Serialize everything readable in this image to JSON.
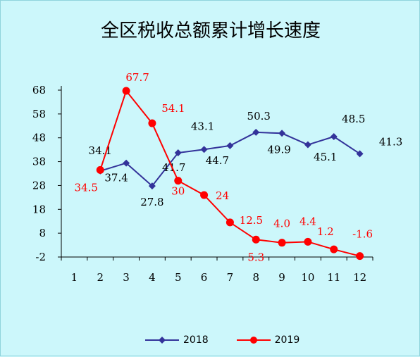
{
  "chart_data": {
    "type": "line",
    "title": "全区税收总额累计增长速度",
    "categories": [
      "1",
      "2",
      "3",
      "4",
      "5",
      "6",
      "7",
      "8",
      "9",
      "10",
      "11",
      "12"
    ],
    "ylim": [
      -2,
      68
    ],
    "yticks": [
      "68",
      "58",
      "48",
      "38",
      "28",
      "18",
      "8",
      "-2"
    ],
    "xlabel": "",
    "ylabel": "",
    "grid": false,
    "legend_position": "bottom",
    "series": [
      {
        "name": "2018",
        "color": "#33339a",
        "marker": "diamond",
        "x": [
          "2",
          "3",
          "4",
          "5",
          "6",
          "7",
          "8",
          "9",
          "10",
          "11",
          "12"
        ],
        "values": [
          34.1,
          37.4,
          27.8,
          41.7,
          43.1,
          44.7,
          50.3,
          49.9,
          45.1,
          48.5,
          41.3
        ],
        "labels": [
          "34.1",
          "37.4",
          "27.8",
          "41.7",
          "43.1",
          "44.7",
          "50.3",
          "49.9",
          null,
          "48.5",
          "41.3"
        ],
        "extra_labels": [
          "45.1"
        ]
      },
      {
        "name": "2019",
        "color": "#ff0000",
        "marker": "circle",
        "x": [
          "2",
          "3",
          "4",
          "5",
          "6",
          "7",
          "8",
          "9",
          "10",
          "11",
          "12"
        ],
        "values": [
          34.5,
          67.7,
          54.1,
          30,
          24,
          12.5,
          5.3,
          4.0,
          4.4,
          1.2,
          -1.6
        ],
        "labels": [
          "34.5",
          "67.7",
          "54.1",
          "30",
          "24",
          "12.5",
          "5.3",
          "4.0",
          "4.4",
          "1.2",
          "-1.6"
        ]
      }
    ]
  },
  "legend": {
    "item_2018": "2018",
    "item_2019": "2019"
  }
}
